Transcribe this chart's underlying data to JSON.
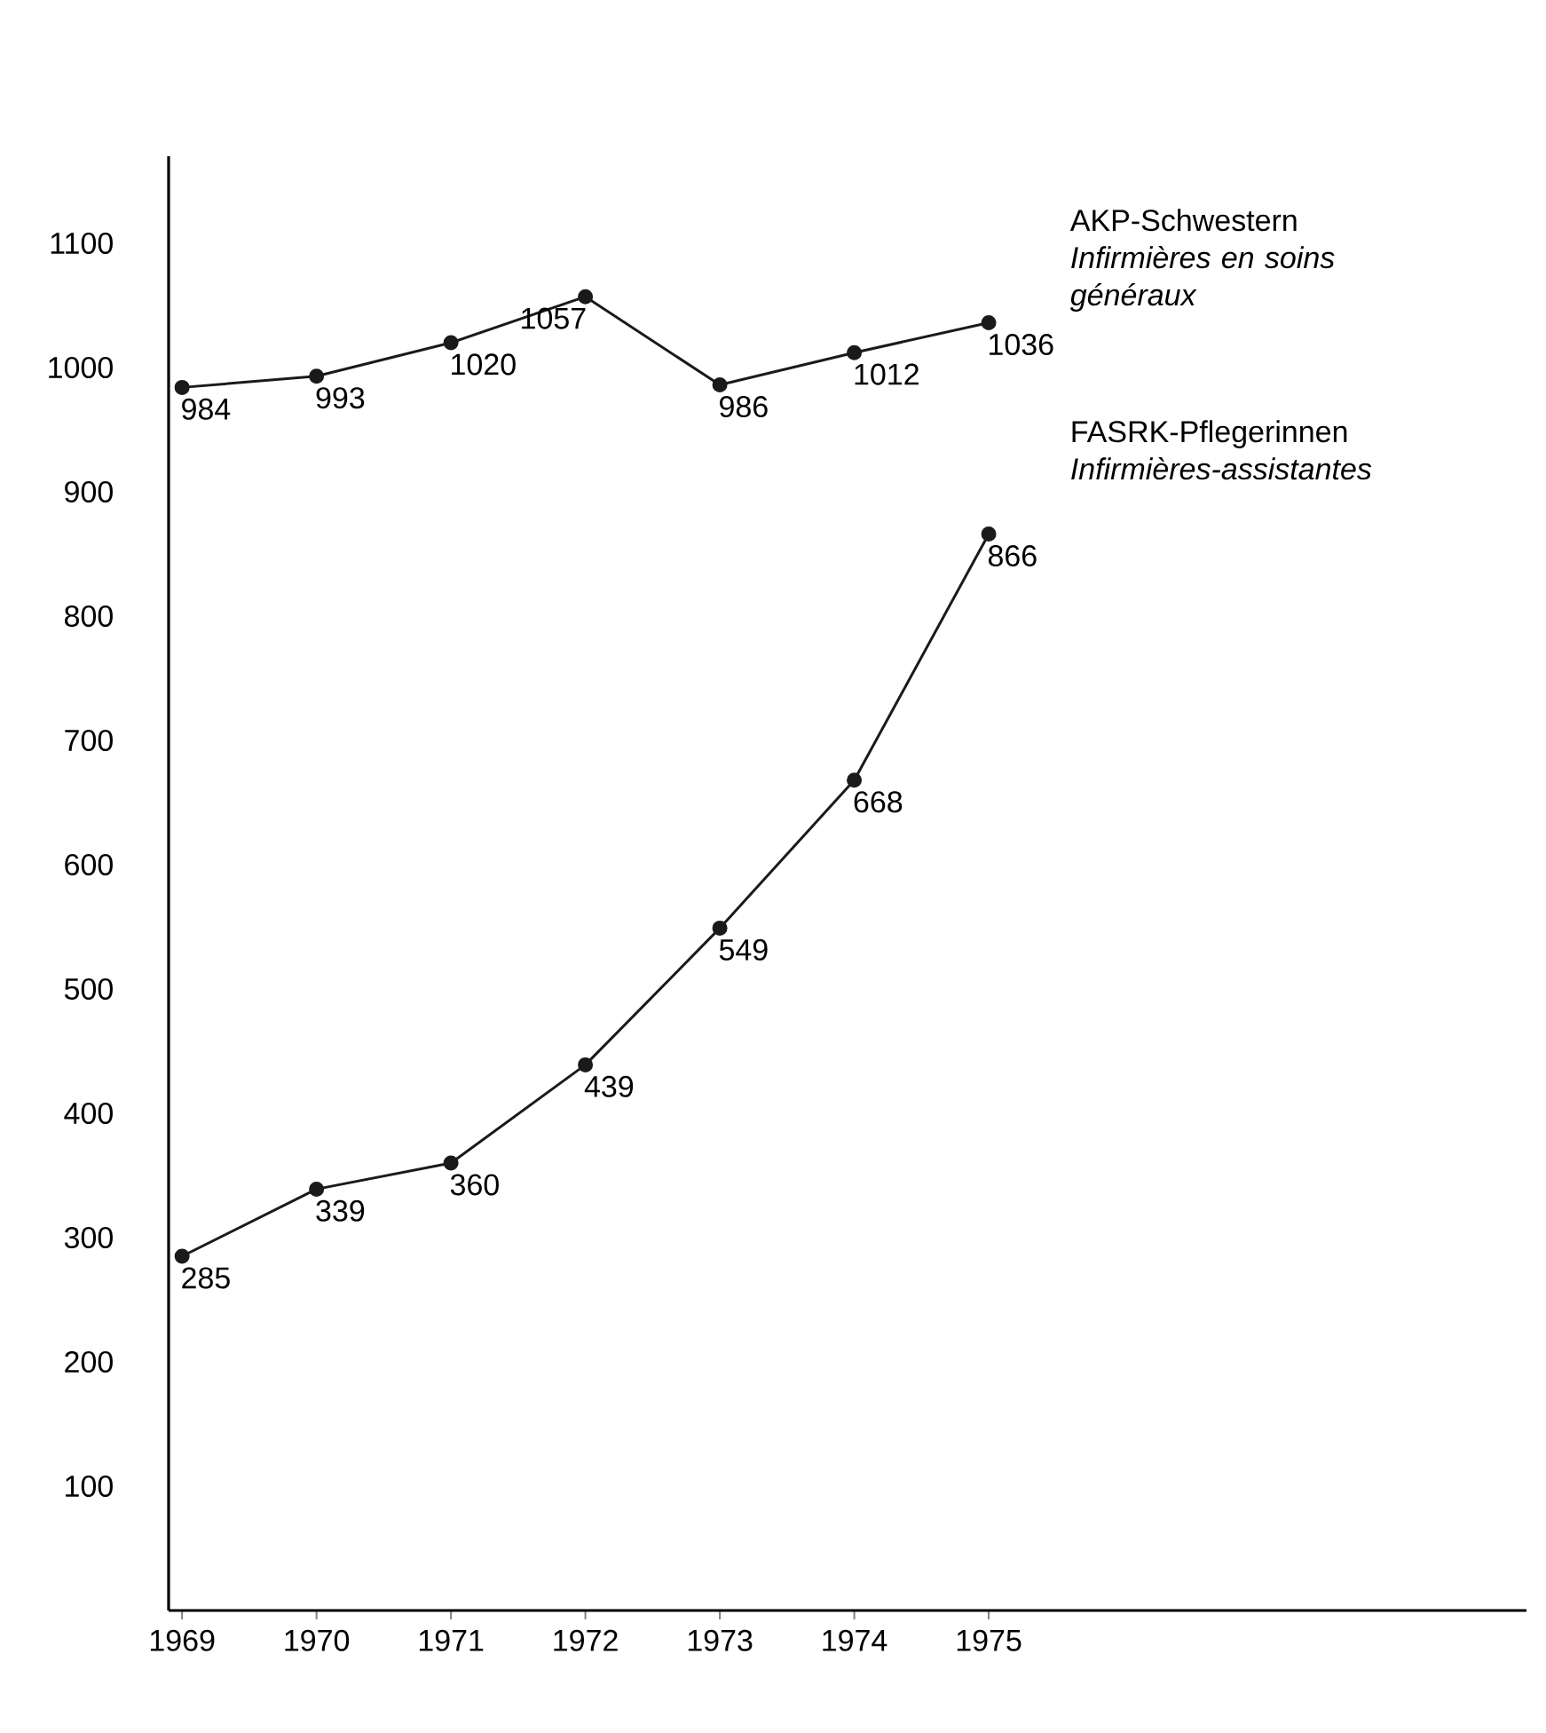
{
  "chart_data": {
    "type": "line",
    "x": [
      1969,
      1970,
      1971,
      1972,
      1973,
      1974,
      1975
    ],
    "series": [
      {
        "name": "AKP-Schwestern *Infirmières en soins généraux*",
        "color": "#1a1a1a",
        "values": [
          984,
          993,
          1020,
          1057,
          986,
          1012,
          1036
        ]
      },
      {
        "name": "FASRK-Pflegerinnen *Infirmières-assistantes*",
        "color": "#1a1a1a",
        "values": [
          285,
          339,
          360,
          439,
          549,
          668,
          866
        ]
      }
    ],
    "xlim": [
      1968.9,
      1979
    ],
    "ylim": [
      0,
      1170
    ],
    "xticks": [
      1969,
      1970,
      1971,
      1972,
      1973,
      1974,
      1975
    ],
    "yticks": [
      100,
      200,
      300,
      400,
      500,
      600,
      700,
      800,
      900,
      1000,
      1100
    ],
    "marker": "circle",
    "line_style": "solid",
    "data_labels": true,
    "grid": false,
    "legend": false
  }
}
